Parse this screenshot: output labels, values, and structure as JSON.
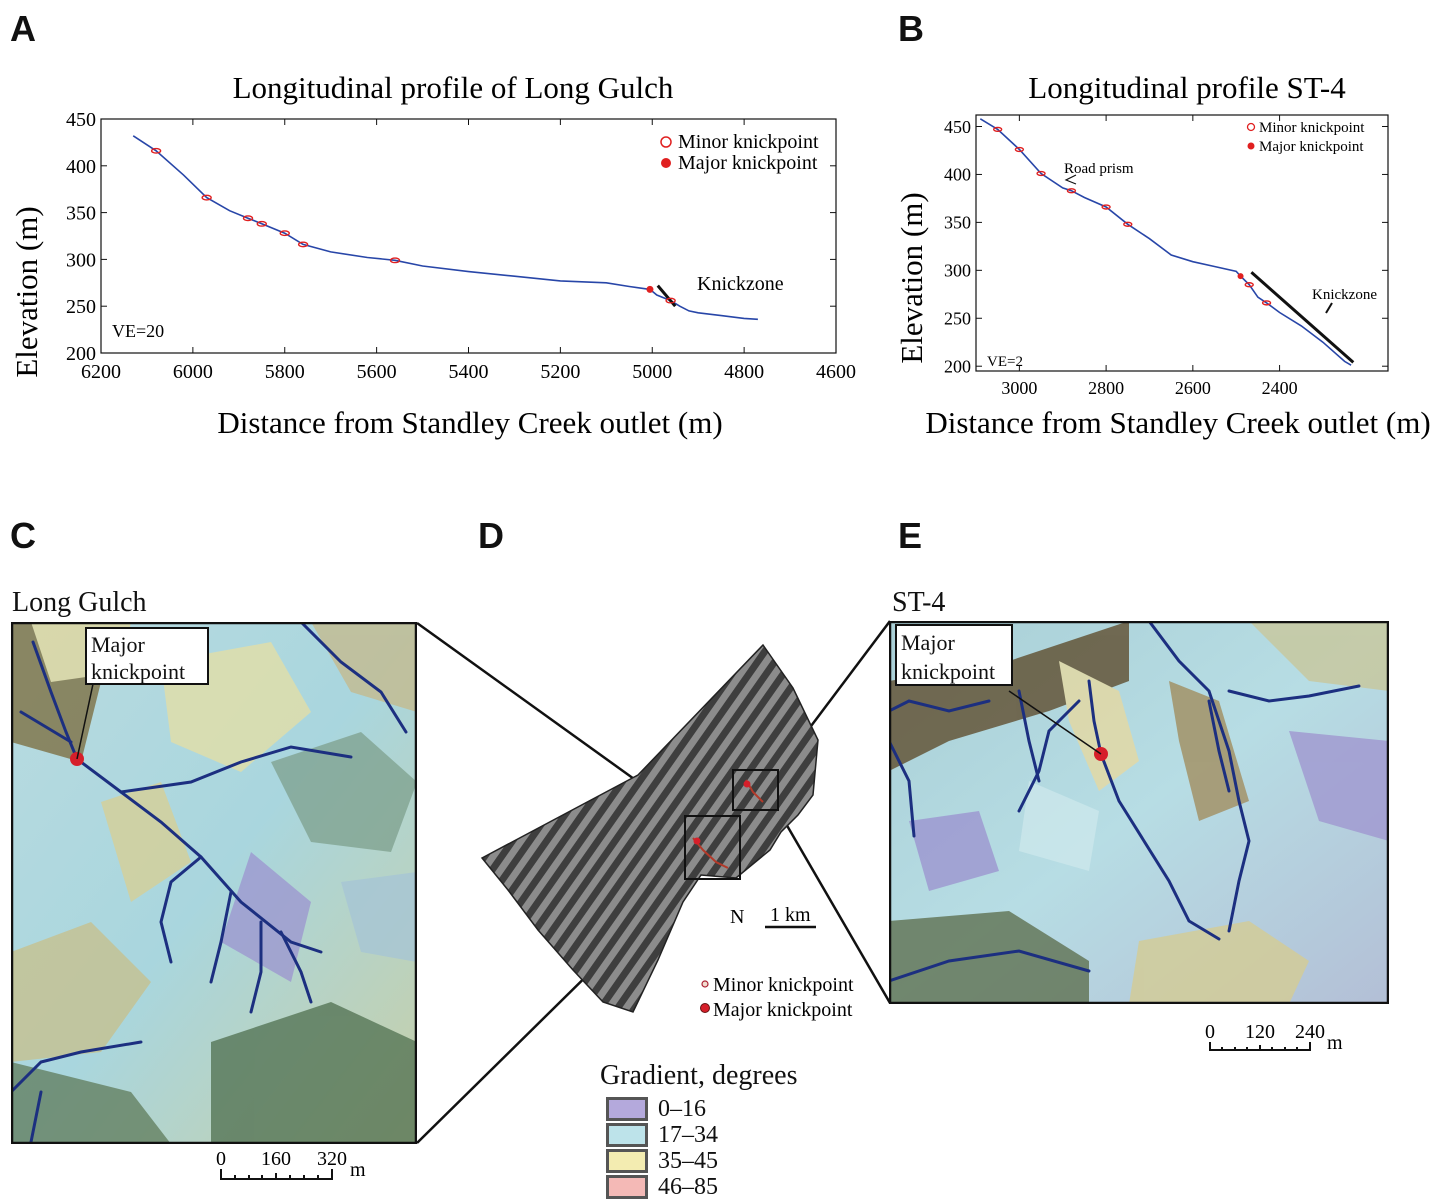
{
  "panels": {
    "A": {
      "letter": "A",
      "title": "Longitudinal profile of Long Gulch",
      "xlabel": "Distance from Standley Creek outlet (m)",
      "ylabel": "Elevation (m)",
      "ve": "VE=20",
      "knickzone_label": "Knickzone",
      "legend": [
        "Minor knickpoint",
        "Major knickpoint"
      ]
    },
    "B": {
      "letter": "B",
      "title": "Longitudinal profile ST-4",
      "xlabel": "Distance from Standley Creek outlet (m)",
      "ylabel": "Elevation (m)",
      "ve": "VE=2",
      "knickzone_label": "Knickzone",
      "road_label": "Road prism",
      "legend": [
        "Minor knickpoint",
        "Major knickpoint"
      ]
    },
    "C": {
      "letter": "C",
      "map_title": "Long Gulch",
      "callout": [
        "Major",
        "knickpoint"
      ],
      "scale": [
        "0",
        "160",
        "320",
        "m"
      ]
    },
    "D": {
      "letter": "D",
      "north": "N",
      "scale": "1 km",
      "legend": [
        "Minor knickpoint",
        "Major knickpoint"
      ]
    },
    "E": {
      "letter": "E",
      "map_title": "ST-4",
      "callout": [
        "Major",
        "knickpoint"
      ],
      "scale": [
        "0",
        "120",
        "240",
        "m"
      ]
    }
  },
  "gradient_legend": {
    "title": "Gradient, degrees",
    "classes": [
      {
        "label": "0–16",
        "color": "#b4a9dc"
      },
      {
        "label": "17–34",
        "color": "#bde3ea"
      },
      {
        "label": "35–45",
        "color": "#f3ecb1"
      },
      {
        "label": "46–85",
        "color": "#f4b9b6"
      }
    ]
  },
  "chart_data": [
    {
      "type": "line",
      "title": "Longitudinal profile of Long Gulch",
      "xlabel": "Distance from Standley Creek outlet (m)",
      "ylabel": "Elevation (m)",
      "xlim": [
        6200,
        4600
      ],
      "ylim": [
        200,
        450
      ],
      "xticks": [
        6200,
        6000,
        5800,
        5600,
        5400,
        5200,
        5000,
        4800,
        4600
      ],
      "yticks": [
        200,
        250,
        300,
        350,
        400,
        450
      ],
      "profile": [
        [
          6130,
          432
        ],
        [
          6080,
          416
        ],
        [
          6020,
          390
        ],
        [
          5970,
          366
        ],
        [
          5920,
          352
        ],
        [
          5880,
          344
        ],
        [
          5850,
          338
        ],
        [
          5800,
          328
        ],
        [
          5760,
          316
        ],
        [
          5700,
          308
        ],
        [
          5620,
          302
        ],
        [
          5560,
          299
        ],
        [
          5500,
          293
        ],
        [
          5400,
          287
        ],
        [
          5300,
          282
        ],
        [
          5200,
          277
        ],
        [
          5100,
          275
        ],
        [
          5050,
          271
        ],
        [
          5005,
          268
        ],
        [
          4990,
          262
        ],
        [
          4960,
          256
        ],
        [
          4940,
          250
        ],
        [
          4920,
          245
        ],
        [
          4900,
          243
        ],
        [
          4850,
          240
        ],
        [
          4800,
          237
        ],
        [
          4770,
          236
        ]
      ],
      "minor_knickpoints": [
        [
          6080,
          416
        ],
        [
          5970,
          366
        ],
        [
          5880,
          344
        ],
        [
          5850,
          338
        ],
        [
          5800,
          328
        ],
        [
          5760,
          316
        ],
        [
          5560,
          299
        ],
        [
          4960,
          256
        ]
      ],
      "major_knickpoints": [
        [
          5005,
          268
        ]
      ],
      "knickzone": [
        [
          4988,
          272
        ],
        [
          4950,
          250
        ]
      ]
    },
    {
      "type": "line",
      "title": "Longitudinal profile ST-4",
      "xlabel": "Distance from Standley Creek outlet (m)",
      "ylabel": "Elevation (m)",
      "xlim": [
        3100,
        2150
      ],
      "ylim": [
        195,
        462
      ],
      "xticks": [
        3000,
        2800,
        2600,
        2400
      ],
      "yticks": [
        200,
        250,
        300,
        350,
        400,
        450
      ],
      "profile": [
        [
          3090,
          458
        ],
        [
          3050,
          447
        ],
        [
          3000,
          426
        ],
        [
          2950,
          401
        ],
        [
          2900,
          386
        ],
        [
          2880,
          383
        ],
        [
          2850,
          376
        ],
        [
          2800,
          366
        ],
        [
          2750,
          348
        ],
        [
          2700,
          333
        ],
        [
          2650,
          316
        ],
        [
          2600,
          309
        ],
        [
          2550,
          304
        ],
        [
          2500,
          299
        ],
        [
          2490,
          294
        ],
        [
          2470,
          285
        ],
        [
          2450,
          272
        ],
        [
          2430,
          266
        ],
        [
          2400,
          256
        ],
        [
          2350,
          242
        ],
        [
          2300,
          225
        ],
        [
          2250,
          205
        ],
        [
          2235,
          201
        ]
      ],
      "minor_knickpoints": [
        [
          3050,
          447
        ],
        [
          3000,
          426
        ],
        [
          2950,
          401
        ],
        [
          2880,
          383
        ],
        [
          2800,
          366
        ],
        [
          2750,
          348
        ],
        [
          2470,
          285
        ],
        [
          2430,
          266
        ]
      ],
      "major_knickpoints": [
        [
          2490,
          294
        ]
      ],
      "knickzone": [
        [
          2465,
          298
        ],
        [
          2230,
          204
        ]
      ],
      "road_prism": [
        2935,
        400
      ]
    }
  ]
}
